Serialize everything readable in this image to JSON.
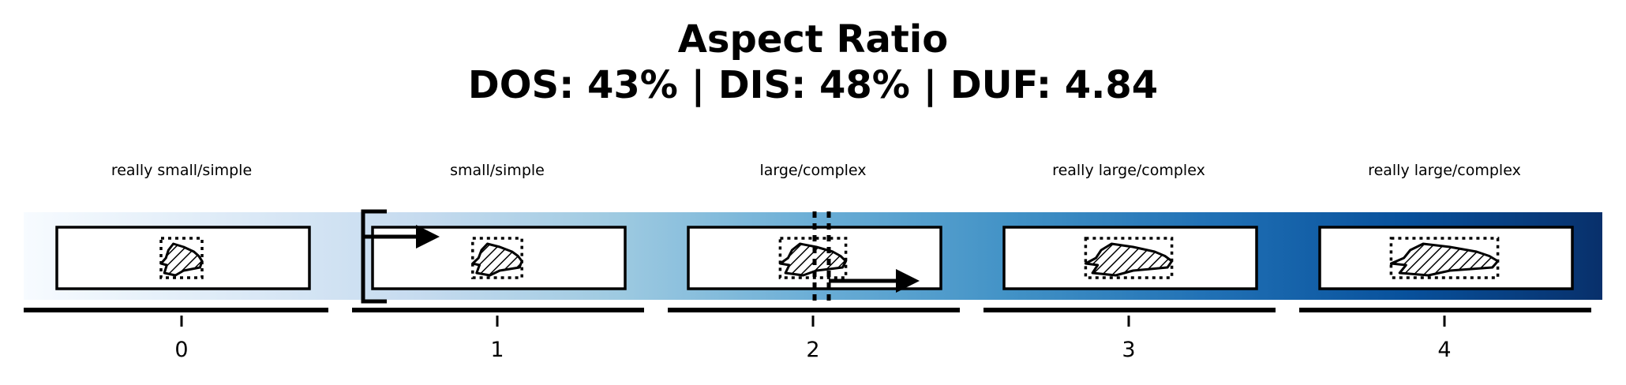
{
  "title": {
    "line1": "Aspect Ratio",
    "line2": "DOS: 43% | DIS: 48% | DUF: 4.84"
  },
  "colormap": {
    "name": "Blues",
    "start": "#f7fbff",
    "stops": [
      "#f7fbff",
      "#deebf7",
      "#c6dbef",
      "#9ecae1",
      "#6baed6",
      "#4292c6",
      "#2171b5",
      "#08519c",
      "#08306b"
    ]
  },
  "bins": [
    {
      "label": "really small/simple",
      "tick": "0",
      "aspect_scale": 1.0
    },
    {
      "label": "small/simple",
      "tick": "1",
      "aspect_scale": 1.2
    },
    {
      "label": "large/complex",
      "tick": "2",
      "aspect_scale": 1.6
    },
    {
      "label": "really large/complex",
      "tick": "3",
      "aspect_scale": 2.1
    },
    {
      "label": "really large/complex",
      "tick": "4",
      "aspect_scale": 2.6
    }
  ],
  "markers": {
    "bracket_bin": "1",
    "dashed_line_bin": "2",
    "arrow_bins": [
      "1",
      "2"
    ]
  }
}
